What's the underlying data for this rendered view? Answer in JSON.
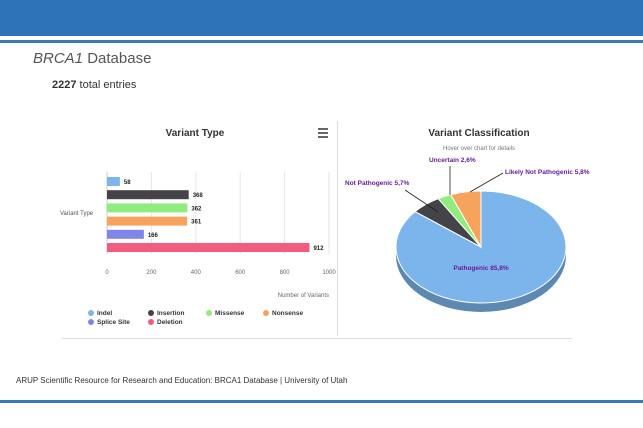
{
  "page": {
    "title_italic": "BRCA1",
    "title_rest": "Database",
    "entries_count": "2227",
    "entries_label": "total entries",
    "footer": "ARUP Scientific Resource for Research and Education: BRCA1 Database | University of Utah"
  },
  "colors": {
    "header": "#2c73b8"
  },
  "chart_data": [
    {
      "type": "bar",
      "title": "Variant Type",
      "ylabel": "Variant Type",
      "xlabel": "Number of Variants",
      "xlim": [
        0,
        1000
      ],
      "xticks": [
        0,
        200,
        400,
        600,
        800,
        1000
      ],
      "categories": [
        "Indel",
        "Insertion",
        "Missense",
        "Nonsense",
        "Splice Site",
        "Deletion"
      ],
      "values": [
        58,
        368,
        362,
        361,
        166,
        912
      ],
      "colors": [
        "#7cb5ec",
        "#434348",
        "#90ed7d",
        "#f7a35c",
        "#8085e9",
        "#f15c80"
      ],
      "legend": "bottom"
    },
    {
      "type": "pie",
      "title": "Variant Classification",
      "subtitle": "Hover over chart for details",
      "slices": [
        {
          "label": "Pathogenic 85,8%",
          "value": 85.8,
          "color": "#7cb5ec"
        },
        {
          "label": "Not Pathogenic 5,7%",
          "value": 5.7,
          "color": "#434348"
        },
        {
          "label": "Uncertain 2,6%",
          "value": 2.6,
          "color": "#90ed7d"
        },
        {
          "label": "Likely Not Pathogenic 5,8%",
          "value": 5.8,
          "color": "#f7a35c"
        }
      ]
    }
  ]
}
